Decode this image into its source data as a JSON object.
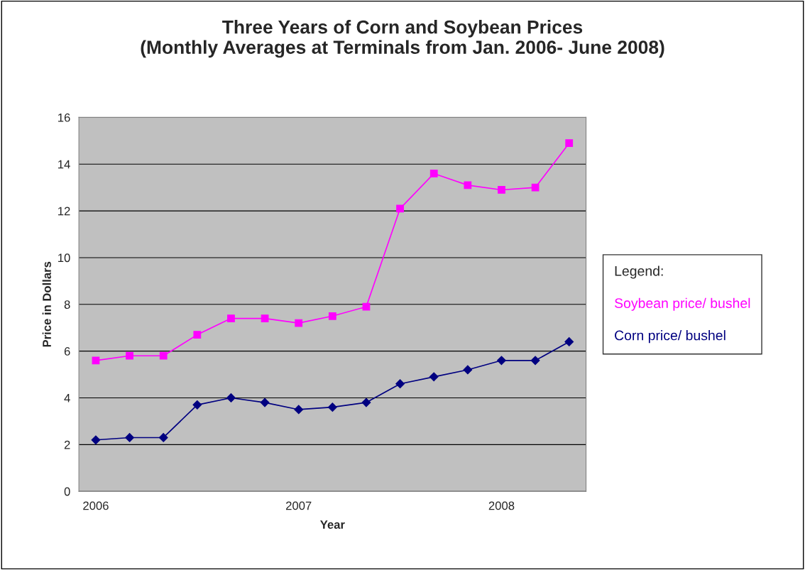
{
  "chart_data": {
    "type": "line",
    "title": "Three Years of Corn and Soybean Prices\n(Monthly Averages at Terminals from Jan. 2006- June 2008)",
    "xlabel": "Year",
    "ylabel": "Price in Dollars",
    "legend_title": "Legend:",
    "categories": [
      "2006",
      null,
      null,
      null,
      null,
      null,
      "2007",
      null,
      null,
      null,
      null,
      null,
      "2008",
      null,
      null
    ],
    "series": [
      {
        "name": "Soybean price/ bushel",
        "color": "#ff00ff",
        "marker": "square",
        "values": [
          5.6,
          5.8,
          5.8,
          6.7,
          7.4,
          7.4,
          7.2,
          7.5,
          7.9,
          12.1,
          13.6,
          13.1,
          12.9,
          13.0,
          14.9
        ]
      },
      {
        "name": "Corn price/ bushel",
        "color": "#000080",
        "marker": "diamond",
        "values": [
          2.2,
          2.3,
          2.3,
          3.7,
          4.0,
          3.8,
          3.5,
          3.6,
          3.8,
          4.6,
          4.9,
          5.2,
          5.6,
          5.6,
          6.4
        ]
      }
    ],
    "ylim": [
      0,
      16
    ],
    "yticks": [
      0,
      2,
      4,
      6,
      8,
      10,
      12,
      14,
      16
    ],
    "grid": "y",
    "legend": "right",
    "line_style": "solid"
  }
}
